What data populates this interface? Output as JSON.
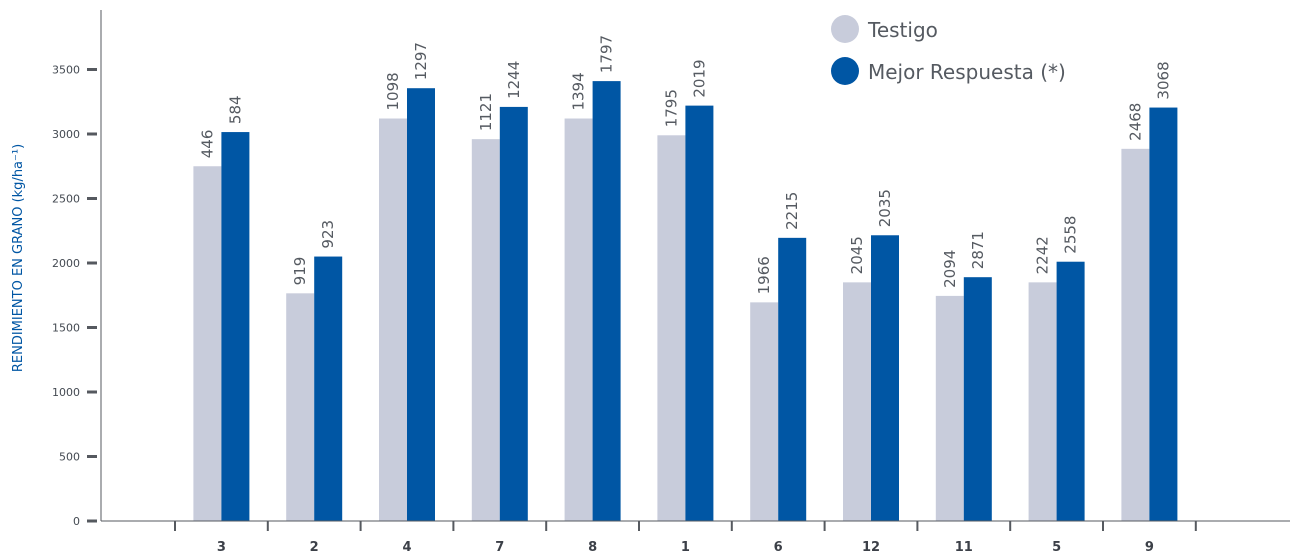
{
  "chart_data": {
    "type": "bar",
    "categories": [
      "3",
      "2",
      "4",
      "7",
      "8",
      "1",
      "6",
      "12",
      "11",
      "5",
      "9"
    ],
    "series": [
      {
        "name": "Testigo",
        "values": [
          2750,
          1765,
          3120,
          2960,
          3120,
          2990,
          1695,
          1850,
          1745,
          1850,
          2885
        ],
        "labels": [
          "446",
          "919",
          "1098",
          "1121",
          "1394",
          "1795",
          "1966",
          "2045",
          "2094",
          "2242",
          "2468"
        ],
        "color": "#c8ccdb"
      },
      {
        "name": "Mejor Respuesta (*)",
        "values": [
          3015,
          2050,
          3355,
          3210,
          3410,
          3220,
          2195,
          2215,
          1890,
          2010,
          3205
        ],
        "labels": [
          "584",
          "923",
          "1297",
          "1244",
          "1797",
          "2019",
          "2215",
          "2035",
          "2871",
          "2558",
          "3068"
        ],
        "color": "#0056a4"
      }
    ],
    "ylabel": "RENDIMIENTO EN GRANO (kg/ha⁻¹)",
    "yticks": [
      0,
      500,
      1000,
      1500,
      2000,
      2500,
      3000,
      3500
    ],
    "ylim": [
      0,
      3500
    ],
    "grid": false,
    "legend_position": "top-right",
    "ylabel_color": "#0056a4"
  }
}
